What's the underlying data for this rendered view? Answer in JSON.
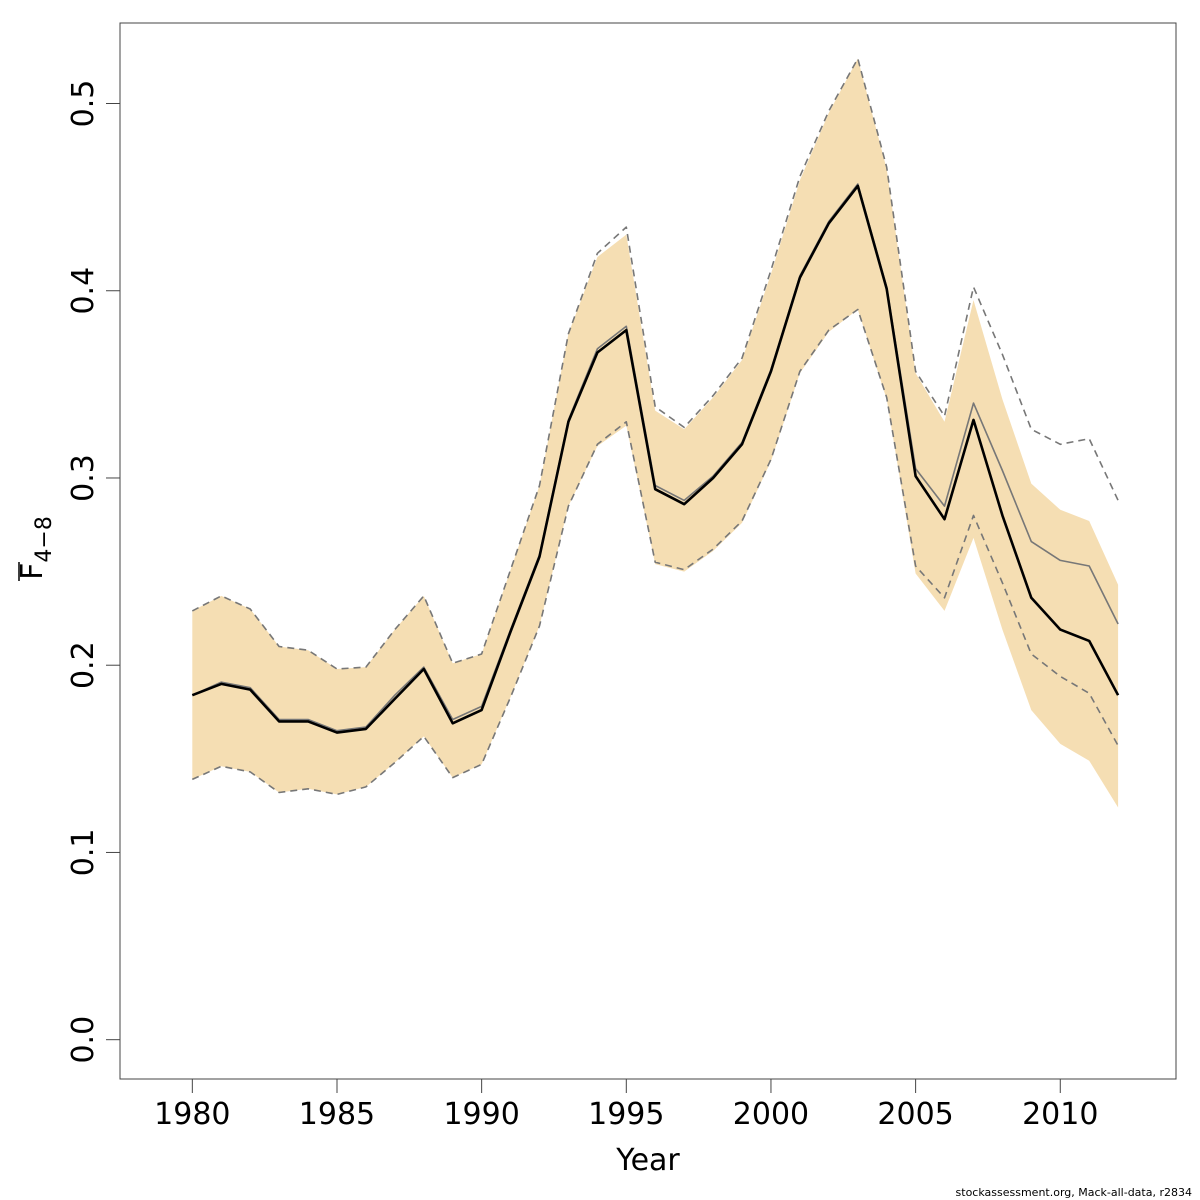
{
  "chart_data": {
    "type": "line",
    "title": "",
    "xlabel": "Year",
    "ylabel_main": "F",
    "ylabel_sub": "4−8",
    "xlim": [
      1977.5,
      2014.0
    ],
    "ylim": [
      -0.021,
      0.543
    ],
    "x_ticks": [
      1980,
      1985,
      1990,
      1995,
      2000,
      2005,
      2010
    ],
    "y_ticks": [
      0.0,
      0.1,
      0.2,
      0.3,
      0.4,
      0.5
    ],
    "y_tick_labels": [
      "0.0",
      "0.1",
      "0.2",
      "0.3",
      "0.4",
      "0.5"
    ],
    "grid": false,
    "legend": "none",
    "x": [
      1980,
      1981,
      1982,
      1983,
      1984,
      1985,
      1986,
      1987,
      1988,
      1989,
      1990,
      1991,
      1992,
      1993,
      1994,
      1995,
      1996,
      1997,
      1998,
      1999,
      2000,
      2001,
      2002,
      2003,
      2004,
      2005,
      2006,
      2007,
      2008,
      2009,
      2010,
      2011,
      2012
    ],
    "band": {
      "color": "#f5deb3",
      "low": [
        0.139,
        0.146,
        0.143,
        0.132,
        0.134,
        0.131,
        0.135,
        0.148,
        0.162,
        0.14,
        0.147,
        0.183,
        0.221,
        0.285,
        0.317,
        0.328,
        0.254,
        0.25,
        0.261,
        0.276,
        0.309,
        0.356,
        0.378,
        0.39,
        0.342,
        0.249,
        0.229,
        0.268,
        0.219,
        0.176,
        0.158,
        0.149,
        0.124
      ],
      "high": [
        0.229,
        0.237,
        0.23,
        0.21,
        0.208,
        0.198,
        0.199,
        0.219,
        0.237,
        0.201,
        0.206,
        0.251,
        0.296,
        0.377,
        0.418,
        0.43,
        0.336,
        0.326,
        0.343,
        0.363,
        0.409,
        0.459,
        0.495,
        0.524,
        0.465,
        0.356,
        0.33,
        0.395,
        0.342,
        0.297,
        0.283,
        0.277,
        0.243
      ]
    },
    "series": [
      {
        "role": "retro",
        "color": "#777777",
        "values": [
          0.184,
          0.191,
          0.188,
          0.171,
          0.171,
          0.165,
          0.167,
          0.184,
          0.199,
          0.171,
          0.178,
          0.219,
          0.259,
          0.331,
          0.369,
          0.381,
          0.296,
          0.288,
          0.301,
          0.319,
          0.358,
          0.408,
          0.437,
          0.457,
          0.402,
          0.305,
          0.285,
          0.34,
          0.304,
          0.266,
          0.256,
          0.253,
          0.222
        ]
      },
      {
        "role": "estimate",
        "color": "#000000",
        "values": [
          0.184,
          0.19,
          0.187,
          0.17,
          0.17,
          0.164,
          0.166,
          0.182,
          0.198,
          0.169,
          0.176,
          0.218,
          0.258,
          0.33,
          0.367,
          0.379,
          0.294,
          0.286,
          0.3,
          0.318,
          0.357,
          0.407,
          0.436,
          0.456,
          0.401,
          0.301,
          0.278,
          0.331,
          0.28,
          0.236,
          0.219,
          0.213,
          0.184
        ]
      },
      {
        "role": "retro-upper",
        "color": "#777777",
        "dashed": true,
        "values": [
          0.229,
          0.237,
          0.23,
          0.21,
          0.208,
          0.198,
          0.199,
          0.219,
          0.237,
          0.201,
          0.206,
          0.251,
          0.296,
          0.377,
          0.42,
          0.434,
          0.338,
          0.327,
          0.344,
          0.364,
          0.411,
          0.461,
          0.496,
          0.524,
          0.466,
          0.357,
          0.333,
          0.402,
          0.366,
          0.326,
          0.318,
          0.321,
          0.288
        ]
      },
      {
        "role": "retro-lower",
        "color": "#777777",
        "dashed": true,
        "values": [
          0.139,
          0.146,
          0.143,
          0.132,
          0.134,
          0.131,
          0.135,
          0.148,
          0.162,
          0.14,
          0.147,
          0.183,
          0.221,
          0.285,
          0.318,
          0.33,
          0.255,
          0.251,
          0.262,
          0.277,
          0.31,
          0.357,
          0.379,
          0.39,
          0.343,
          0.253,
          0.236,
          0.28,
          0.244,
          0.206,
          0.194,
          0.185,
          0.157
        ]
      }
    ]
  },
  "footer": "stockassessment.org, Mack-all-data, r2834"
}
